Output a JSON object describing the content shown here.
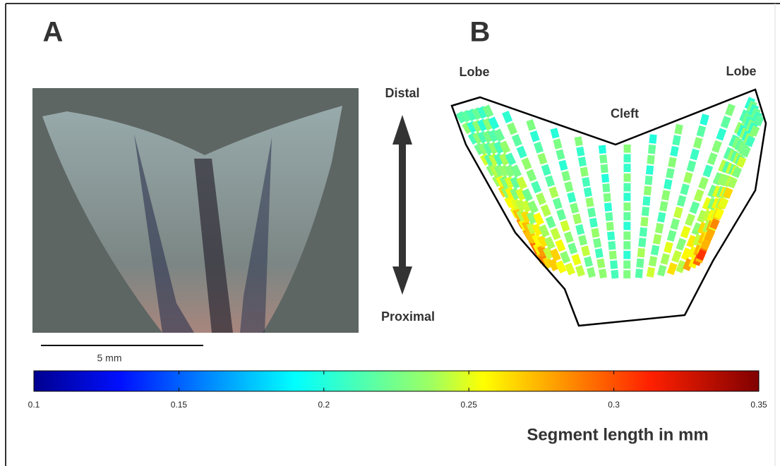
{
  "panel_a": {
    "label": "A",
    "scale_bar": "5 mm"
  },
  "axis_arrow": {
    "top": "Distal",
    "bottom": "Proximal"
  },
  "panel_b": {
    "label": "B",
    "left_lobe": "Lobe",
    "right_lobe": "Lobe",
    "cleft": "Cleft"
  },
  "colorbar": {
    "lim": [
      0.1,
      0.35
    ],
    "ticks": [
      0.1,
      0.15,
      0.2,
      0.25,
      0.3,
      0.35
    ],
    "label": "Segment length in mm"
  }
}
